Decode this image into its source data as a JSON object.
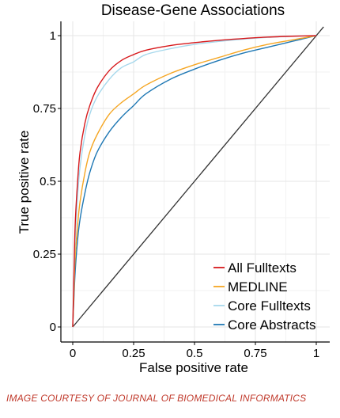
{
  "chart_data": {
    "type": "line",
    "title": "Disease-Gene Associations",
    "xlabel": "False positive rate",
    "ylabel": "True positive rate",
    "xlim": [
      0,
      1
    ],
    "ylim": [
      0,
      1
    ],
    "x_ticks": [
      {
        "value": 0,
        "label": "0"
      },
      {
        "value": 0.25,
        "label": "0.25"
      },
      {
        "value": 0.5,
        "label": "0.5"
      },
      {
        "value": 0.75,
        "label": "0.75"
      },
      {
        "value": 1,
        "label": "1"
      }
    ],
    "y_ticks": [
      {
        "value": 0,
        "label": "0"
      },
      {
        "value": 0.25,
        "label": "0.25"
      },
      {
        "value": 0.5,
        "label": "0.5"
      },
      {
        "value": 0.75,
        "label": "0.75"
      },
      {
        "value": 1,
        "label": "1"
      }
    ],
    "grid": true,
    "legend_position": "bottom-right",
    "diagonal": {
      "x": [
        0,
        1.03
      ],
      "y": [
        0,
        1.03
      ],
      "color": "#333333"
    },
    "series": [
      {
        "name": "All Fulltexts",
        "color": "#d7191c",
        "x": [
          0,
          0.005,
          0.01,
          0.02,
          0.03,
          0.05,
          0.07,
          0.1,
          0.15,
          0.2,
          0.25,
          0.3,
          0.4,
          0.5,
          0.6,
          0.7,
          0.8,
          0.9,
          1.0
        ],
        "y": [
          0,
          0.18,
          0.35,
          0.5,
          0.6,
          0.7,
          0.76,
          0.82,
          0.88,
          0.915,
          0.935,
          0.95,
          0.966,
          0.976,
          0.984,
          0.99,
          0.995,
          0.998,
          1.0
        ]
      },
      {
        "name": "MEDLINE",
        "color": "#f5a623",
        "x": [
          0,
          0.005,
          0.01,
          0.02,
          0.03,
          0.05,
          0.07,
          0.1,
          0.15,
          0.2,
          0.25,
          0.3,
          0.4,
          0.5,
          0.6,
          0.7,
          0.8,
          0.9,
          1.0
        ],
        "y": [
          0,
          0.12,
          0.24,
          0.35,
          0.43,
          0.53,
          0.6,
          0.66,
          0.73,
          0.77,
          0.8,
          0.83,
          0.87,
          0.9,
          0.925,
          0.95,
          0.97,
          0.985,
          1.0
        ]
      },
      {
        "name": "Core Fulltexts",
        "color": "#a6d8ec",
        "x": [
          0,
          0.005,
          0.01,
          0.02,
          0.03,
          0.05,
          0.07,
          0.1,
          0.15,
          0.2,
          0.25,
          0.3,
          0.4,
          0.5,
          0.6,
          0.7,
          0.8,
          0.9,
          1.0
        ],
        "y": [
          0,
          0.16,
          0.3,
          0.45,
          0.55,
          0.66,
          0.73,
          0.79,
          0.85,
          0.89,
          0.91,
          0.935,
          0.955,
          0.97,
          0.98,
          0.988,
          0.994,
          0.998,
          1.0
        ]
      },
      {
        "name": "Core Abstracts",
        "color": "#1f78b4",
        "x": [
          0,
          0.005,
          0.01,
          0.02,
          0.03,
          0.05,
          0.07,
          0.1,
          0.15,
          0.2,
          0.25,
          0.3,
          0.4,
          0.5,
          0.6,
          0.7,
          0.8,
          0.9,
          1.0
        ],
        "y": [
          0,
          0.1,
          0.19,
          0.3,
          0.37,
          0.46,
          0.53,
          0.6,
          0.67,
          0.72,
          0.76,
          0.8,
          0.85,
          0.885,
          0.915,
          0.94,
          0.96,
          0.98,
          1.0
        ]
      }
    ]
  },
  "footer": {
    "credit": "IMAGE COURTESY OF JOURNAL OF BIOMEDICAL INFORMATICS"
  }
}
